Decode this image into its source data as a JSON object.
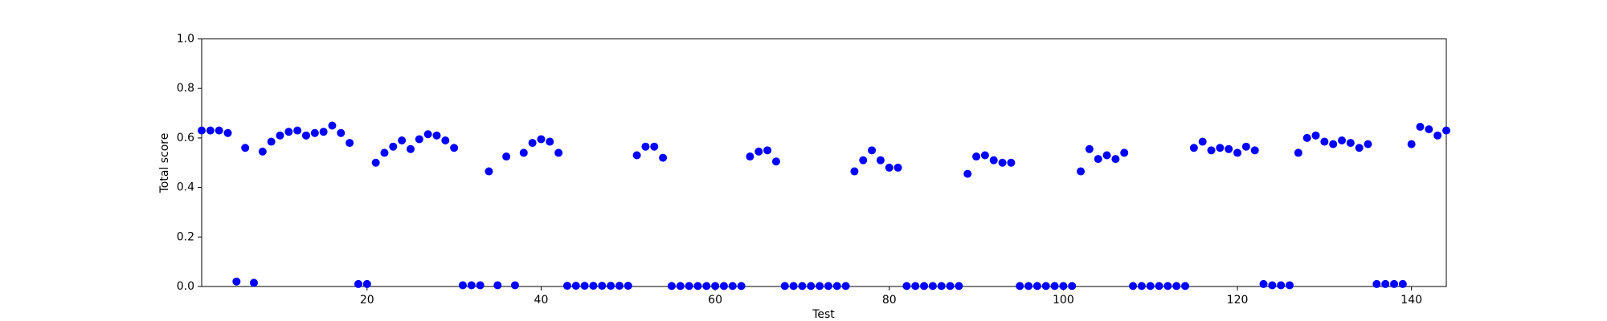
{
  "chart_data": {
    "type": "scatter",
    "xlabel": "Test",
    "ylabel": "Total score",
    "color": "#0000ff",
    "x": [
      1,
      2,
      3,
      4,
      5,
      6,
      7,
      8,
      9,
      10,
      11,
      12,
      13,
      14,
      15,
      16,
      17,
      18,
      19,
      20,
      21,
      22,
      23,
      24,
      25,
      26,
      27,
      28,
      29,
      30,
      31,
      32,
      33,
      34,
      35,
      36,
      37,
      38,
      39,
      40,
      41,
      42,
      43,
      44,
      45,
      46,
      47,
      48,
      49,
      50,
      51,
      52,
      53,
      54,
      55,
      56,
      57,
      58,
      59,
      60,
      61,
      62,
      63,
      64,
      65,
      66,
      67,
      68,
      69,
      70,
      71,
      72,
      73,
      74,
      75,
      76,
      77,
      78,
      79,
      80,
      81,
      82,
      83,
      84,
      85,
      86,
      87,
      88,
      89,
      90,
      91,
      92,
      93,
      94,
      95,
      96,
      97,
      98,
      99,
      100,
      101,
      102,
      103,
      104,
      105,
      106,
      107,
      108,
      109,
      110,
      111,
      112,
      113,
      114,
      115,
      116,
      117,
      118,
      119,
      120,
      121,
      122,
      123,
      124,
      125,
      126,
      127,
      128,
      129,
      130,
      131,
      132,
      133,
      134,
      135,
      136,
      137,
      138,
      139,
      140,
      141,
      142,
      143,
      144
    ],
    "values": [
      0.63,
      0.63,
      0.63,
      0.62,
      0.02,
      0.56,
      0.015,
      0.545,
      0.585,
      0.61,
      0.625,
      0.63,
      0.61,
      0.62,
      0.625,
      0.65,
      0.62,
      0.58,
      0.01,
      0.01,
      0.5,
      0.54,
      0.565,
      0.59,
      0.555,
      0.595,
      0.615,
      0.61,
      0.59,
      0.56,
      0.005,
      0.005,
      0.005,
      0.465,
      0.005,
      0.525,
      0.005,
      0.54,
      0.58,
      0.595,
      0.585,
      0.54,
      0.003,
      0.003,
      0.003,
      0.003,
      0.003,
      0.003,
      0.003,
      0.003,
      0.53,
      0.565,
      0.565,
      0.52,
      0.002,
      0.002,
      0.002,
      0.002,
      0.002,
      0.002,
      0.002,
      0.002,
      0.002,
      0.525,
      0.545,
      0.55,
      0.505,
      0.002,
      0.002,
      0.002,
      0.002,
      0.002,
      0.002,
      0.002,
      0.002,
      0.465,
      0.51,
      0.55,
      0.51,
      0.48,
      0.48,
      0.002,
      0.002,
      0.002,
      0.002,
      0.002,
      0.002,
      0.002,
      0.455,
      0.525,
      0.53,
      0.51,
      0.5,
      0.5,
      0.002,
      0.002,
      0.002,
      0.002,
      0.002,
      0.002,
      0.002,
      0.465,
      0.555,
      0.515,
      0.53,
      0.515,
      0.54,
      0.002,
      0.002,
      0.002,
      0.002,
      0.002,
      0.002,
      0.002,
      0.56,
      0.585,
      0.55,
      0.56,
      0.555,
      0.54,
      0.565,
      0.55,
      0.01,
      0.005,
      0.005,
      0.005,
      0.54,
      0.6,
      0.61,
      0.585,
      0.575,
      0.59,
      0.58,
      0.56,
      0.575,
      0.01,
      0.01,
      0.01,
      0.01,
      0.575,
      0.645,
      0.635,
      0.61,
      0.63
    ],
    "xlim": [
      1,
      144
    ],
    "xticks": [
      20,
      40,
      60,
      80,
      100,
      120,
      140
    ],
    "ylim": [
      0,
      1
    ],
    "yticks": [
      {
        "value": 0,
        "label": "0.0"
      },
      0.2,
      0.4,
      0.6,
      0.8,
      {
        "value": 1,
        "label": "1.0"
      }
    ]
  }
}
